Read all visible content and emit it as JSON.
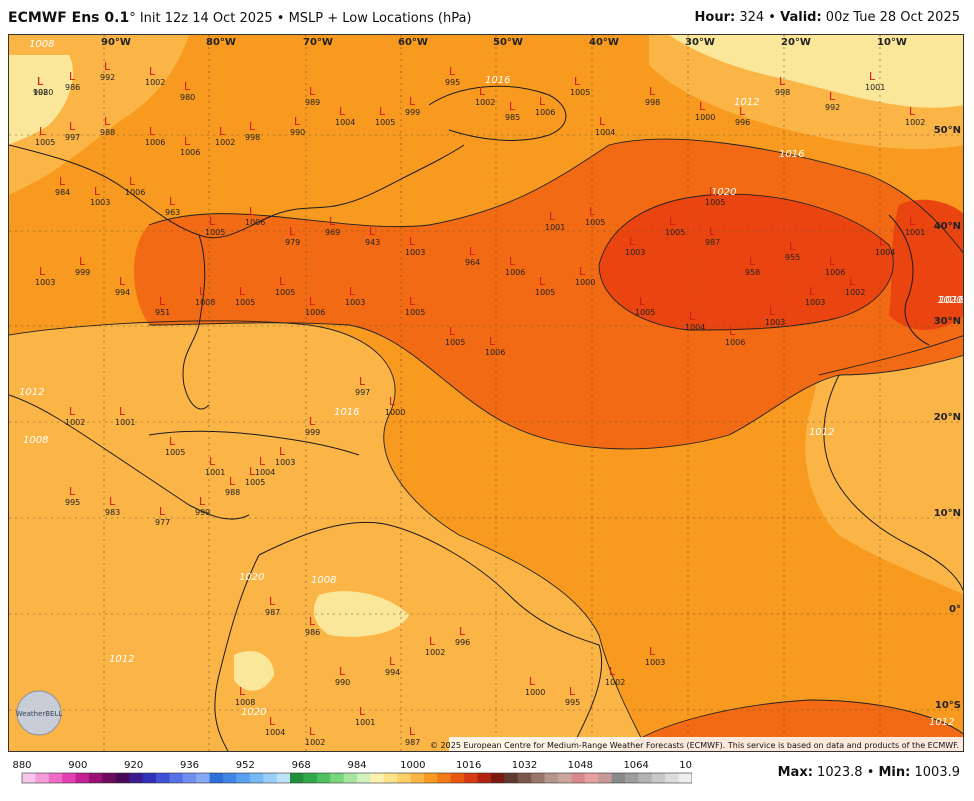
{
  "header": {
    "model": "ECMWF Ens 0.1",
    "degree": "°",
    "init": "Init 12z 14 Oct 2025",
    "separator": "•",
    "product": "MSLP + Low Locations (hPa)",
    "hour_label": "Hour:",
    "hour": "324",
    "valid_label": "Valid:",
    "valid": "00z Tue 28 Oct 2025"
  },
  "map": {
    "lon_labels": [
      "90°W",
      "80°W",
      "70°W",
      "60°W",
      "50°W",
      "40°W",
      "30°W",
      "20°W",
      "10°W"
    ],
    "lat_labels": [
      "50°N",
      "40°N",
      "30°N",
      "20°N",
      "10°N",
      "0°",
      "10°S"
    ],
    "isobar_labels": [
      "1020",
      "1016",
      "1012",
      "1008",
      "1012",
      "1016",
      "1012",
      "1008",
      "1012",
      "1020",
      "1016",
      "1012",
      "1008",
      "1020",
      "1020",
      "1016"
    ],
    "low_marker": "L",
    "low_values": [
      "998",
      "986",
      "992",
      "1002",
      "980",
      "1005",
      "997",
      "988",
      "1006",
      "1006",
      "1002",
      "998",
      "990",
      "989",
      "1004",
      "1005",
      "999",
      "995",
      "1002",
      "985",
      "1006",
      "1005",
      "1004",
      "998",
      "1000",
      "996",
      "998",
      "992",
      "1001",
      "1002",
      "984",
      "1003",
      "1006",
      "963",
      "1005",
      "1006",
      "979",
      "969",
      "943",
      "1003",
      "964",
      "1006",
      "1001",
      "1005",
      "1003",
      "1005",
      "987",
      "958",
      "955",
      "1006",
      "1004",
      "1001",
      "1003",
      "999",
      "994",
      "951",
      "1008",
      "1005",
      "1005",
      "1006",
      "1003",
      "1005",
      "1005",
      "1006",
      "1005",
      "1000",
      "1005",
      "1004",
      "1006",
      "1003",
      "1003",
      "1002",
      "1002",
      "1001",
      "1005",
      "1001",
      "1005",
      "1003",
      "999",
      "997",
      "1000",
      "995",
      "983",
      "977",
      "999",
      "988",
      "1004",
      "987",
      "986",
      "990",
      "994",
      "1002",
      "996",
      "1000",
      "995",
      "1002",
      "1003",
      "1008",
      "1004",
      "1002",
      "1001",
      "987",
      "1005",
      "1020"
    ],
    "colors": {
      "lightyellow": "#fbe79a",
      "yellow": "#fdd06a",
      "lightorange": "#fbb547",
      "orange": "#f89a1f",
      "darkorange": "#f26a14",
      "red": "#ea4410",
      "land_line": "#1b1b1b",
      "low_red": "#d11a1a"
    },
    "copyright": "© 2025 European Centre for Medium-Range Weather Forecasts (ECMWF). This service is based on data and products of the ECMWF.",
    "logo_text": "WeatherBELL"
  },
  "legend": {
    "ticks": [
      "880",
      "900",
      "920",
      "936",
      "952",
      "968",
      "984",
      "1000",
      "1016",
      "1032",
      "1048",
      "1064",
      "1080"
    ],
    "colors": [
      "#f7c6e8",
      "#f59bd7",
      "#ef6cc6",
      "#e23fb2",
      "#c41f93",
      "#9b1074",
      "#6d0b5a",
      "#4a0858",
      "#3a1a8c",
      "#3030b8",
      "#3f4fd6",
      "#5670e6",
      "#6f8ef0",
      "#86a8f5",
      "#2e6fdb",
      "#3d86e8",
      "#58a0f0",
      "#78b8f5",
      "#9acdf7",
      "#bfe2fa",
      "#1f8f3a",
      "#2fa84a",
      "#4cc160",
      "#77d67e",
      "#a6e7a0",
      "#cff2bf",
      "#fdf2b0",
      "#fde48a",
      "#fdd06a",
      "#fbb547",
      "#f89a1f",
      "#f27a14",
      "#ea5510",
      "#d63a12",
      "#b02410",
      "#7c1a10",
      "#5d3b30",
      "#7b574a",
      "#98766a",
      "#b6968a",
      "#c9a79c",
      "#d88a8a",
      "#e6a0a0",
      "#c79a9a",
      "#8a8a8a",
      "#9e9e9e",
      "#b4b4b4",
      "#c8c8c8",
      "#dcdcdc",
      "#efefef"
    ]
  },
  "stats": {
    "max_label": "Max:",
    "max": "1023.8",
    "sep": "•",
    "min_label": "Min:",
    "min": "1003.9"
  }
}
